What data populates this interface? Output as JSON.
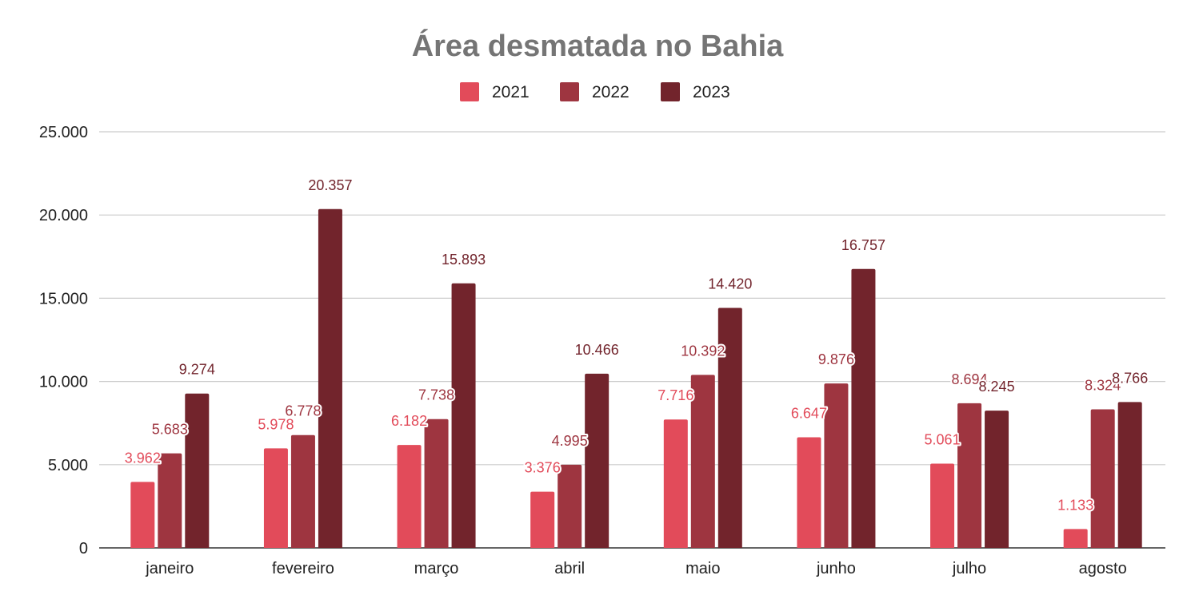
{
  "colors": {
    "2021": "#e24b5a",
    "2022": "#9e3540",
    "2023": "#72242c",
    "title": "#757575",
    "axis_text": "#222222",
    "grid": "#cccccc",
    "baseline": "#333333"
  },
  "chart_data": {
    "type": "bar",
    "title": "Área desmatada no Bahia",
    "xlabel": "",
    "ylabel": "",
    "legend_position": "top",
    "grid": true,
    "ylim": [
      0,
      25000
    ],
    "yticks": [
      0,
      5000,
      10000,
      15000,
      20000,
      25000
    ],
    "ytick_labels": [
      "0",
      "5.000",
      "10.000",
      "15.000",
      "20.000",
      "25.000"
    ],
    "categories": [
      "janeiro",
      "fevereiro",
      "março",
      "abril",
      "maio",
      "junho",
      "julho",
      "agosto"
    ],
    "series": [
      {
        "name": "2021",
        "values": [
          3962,
          5978,
          6182,
          3376,
          7716,
          6647,
          5061,
          1133
        ],
        "labels": [
          "3.962",
          "5.978",
          "6.182",
          "3.376",
          "7.716",
          "6.647",
          "5.061",
          "1.133"
        ]
      },
      {
        "name": "2022",
        "values": [
          5683,
          6778,
          7738,
          4995,
          10392,
          9876,
          8694,
          8324
        ],
        "labels": [
          "5.683",
          "6.778",
          "7.738",
          "4.995",
          "10.392",
          "9.876",
          "8.694",
          "8.324"
        ]
      },
      {
        "name": "2023",
        "values": [
          9274,
          20357,
          15893,
          10466,
          14420,
          16757,
          8245,
          8766
        ],
        "labels": [
          "9.274",
          "20.357",
          "15.893",
          "10.466",
          "14.420",
          "16.757",
          "8.245",
          "8.766"
        ]
      }
    ]
  }
}
